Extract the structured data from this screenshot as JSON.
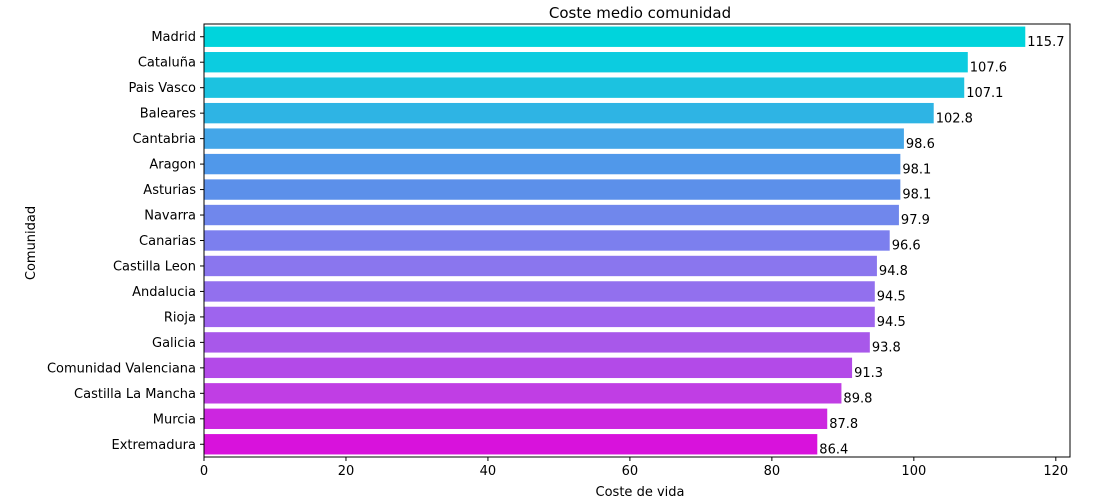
{
  "chart_data": {
    "type": "bar",
    "orientation": "horizontal",
    "title": "Coste medio comunidad",
    "xlabel": "Coste de vida",
    "ylabel": "Comunidad",
    "xlim": [
      0,
      122
    ],
    "xticks": [
      0,
      20,
      40,
      60,
      80,
      100,
      120
    ],
    "grid": false,
    "legend": "none",
    "categories": [
      "Madrid",
      "Cataluña",
      "Pais Vasco",
      "Baleares",
      "Cantabria",
      "Aragon",
      "Asturias",
      "Navarra",
      "Canarias",
      "Castilla Leon",
      "Andalucia",
      "Rioja",
      "Galicia",
      "Comunidad Valenciana",
      "Castilla La Mancha",
      "Murcia",
      "Extremadura"
    ],
    "values": [
      115.7,
      107.6,
      107.1,
      102.8,
      98.6,
      98.1,
      98.1,
      97.9,
      96.6,
      94.8,
      94.5,
      94.5,
      93.8,
      91.3,
      89.8,
      87.8,
      86.4
    ],
    "value_labels": [
      "115.7",
      "107.6",
      "107.1",
      "102.8",
      "98.6",
      "98.1",
      "98.1",
      "97.9",
      "96.6",
      "94.8",
      "94.5",
      "94.5",
      "93.8",
      "91.3",
      "89.8",
      "87.8",
      "86.4"
    ],
    "colors": [
      "#00d4dc",
      "#0ccce0",
      "#1cc2e0",
      "#2eb4e4",
      "#44a6e8",
      "#5098ea",
      "#5c90ea",
      "#7087ec",
      "#7c7fee",
      "#8a76ee",
      "#9270ee",
      "#9e64ee",
      "#a858ea",
      "#b34ae8",
      "#c03ee4",
      "#cc26e0",
      "#d812dc"
    ]
  }
}
